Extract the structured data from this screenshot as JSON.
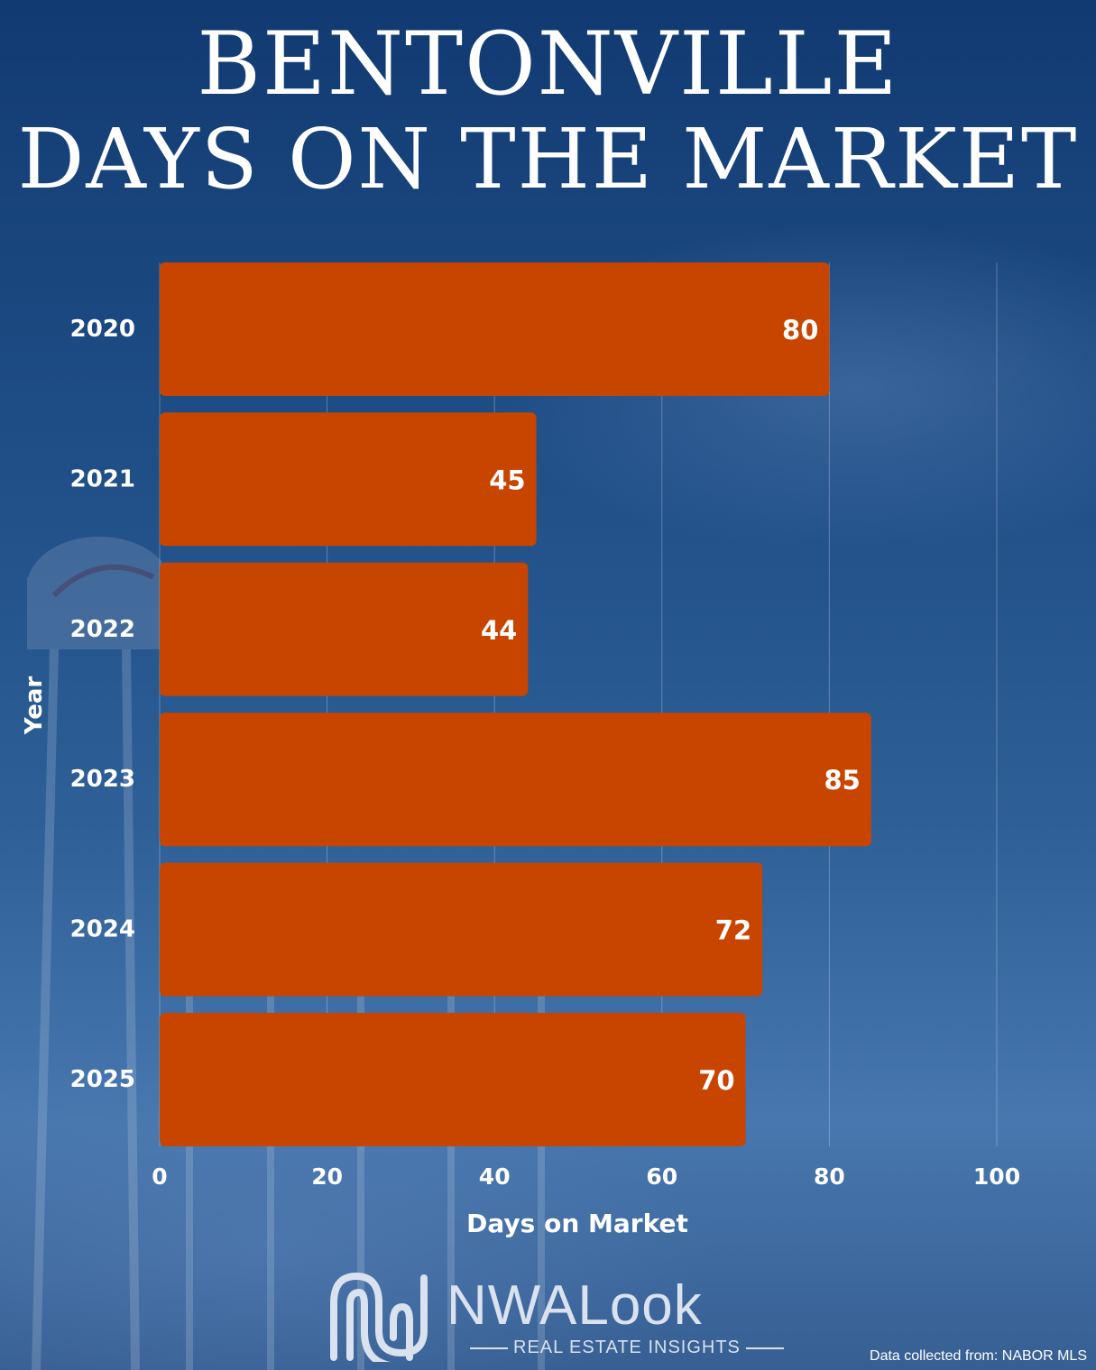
{
  "title_line1": "BENTONVILLE",
  "title_line2": "DAYS ON THE MARKET",
  "chart_data": {
    "type": "bar",
    "orientation": "horizontal",
    "categories": [
      "2020",
      "2021",
      "2022",
      "2023",
      "2024",
      "2025"
    ],
    "values": [
      80,
      45,
      44,
      85,
      72,
      70
    ],
    "xlabel": "Days on Market",
    "ylabel": "Year",
    "xlim": [
      0,
      100
    ],
    "xticks": [
      0,
      20,
      40,
      60,
      80,
      100
    ],
    "grid": true,
    "data_labels": true,
    "bar_color": "#c84500"
  },
  "logo": {
    "name": "NWALook",
    "tagline": "REAL ESTATE INSIGHTS"
  },
  "source_note": "Data collected from: NABOR MLS"
}
